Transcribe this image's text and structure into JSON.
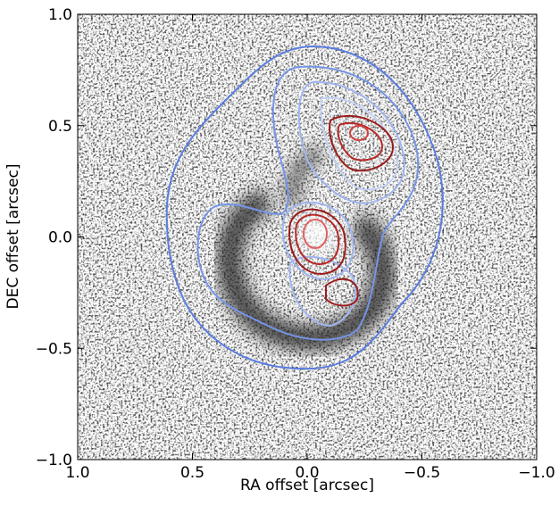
{
  "chart_data": {
    "type": "image",
    "xlabel": "RA offset [arcsec]",
    "ylabel": "DEC offset [arcsec]",
    "xlim": [
      1.0,
      -1.0
    ],
    "ylim": [
      -1.0,
      1.0
    ],
    "xticks": [
      {
        "value": 1.0,
        "label": "1.0"
      },
      0.5,
      {
        "value": 0.0,
        "label": "0.0"
      },
      {
        "value": -0.5,
        "label": "−0.5"
      },
      {
        "value": -1.0,
        "label": "−1.0"
      }
    ],
    "yticks": [
      {
        "value": -1.0,
        "label": "−1.0"
      },
      {
        "value": -0.5,
        "label": "−0.5"
      },
      {
        "value": 0.0,
        "label": "0.0"
      },
      0.5,
      {
        "value": 1.0,
        "label": "1.0"
      }
    ]
  }
}
